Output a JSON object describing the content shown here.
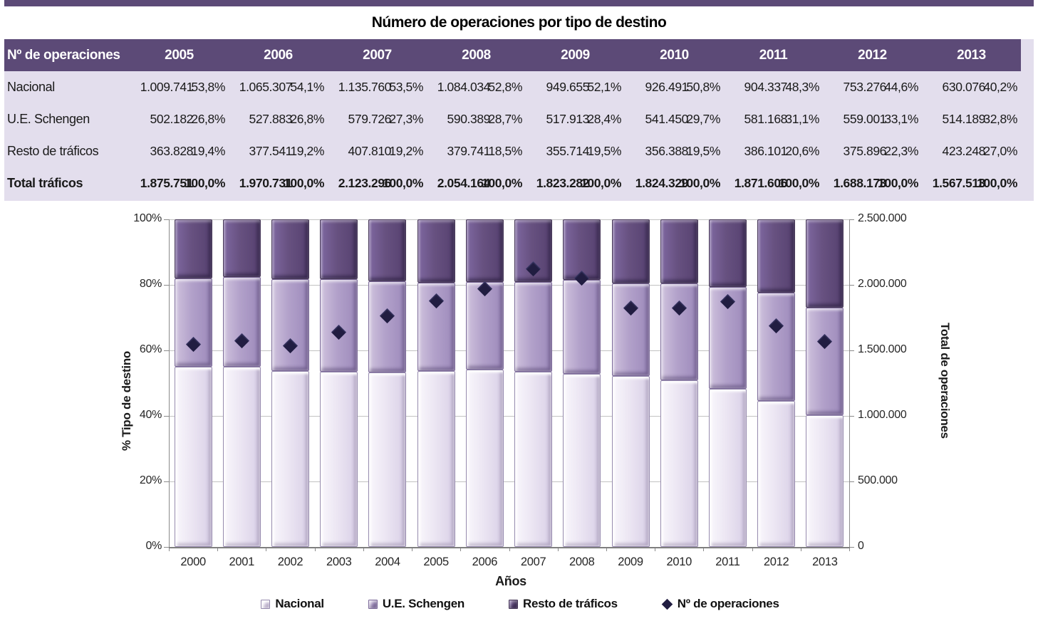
{
  "table": {
    "title": "Número de operaciones por tipo de destino",
    "corner_header": "Nº de operaciones",
    "years": [
      "2005",
      "2006",
      "2007",
      "2008",
      "2009",
      "2010",
      "2011",
      "2012",
      "2013"
    ],
    "rows": [
      {
        "label": "Nacional",
        "bold": false,
        "cells": [
          [
            "1.009.741",
            "53,8%"
          ],
          [
            "1.065.307",
            "54,1%"
          ],
          [
            "1.135.760",
            "53,5%"
          ],
          [
            "1.084.034",
            "52,8%"
          ],
          [
            "949.655",
            "52,1%"
          ],
          [
            "926.491",
            "50,8%"
          ],
          [
            "904.337",
            "48,3%"
          ],
          [
            "753.276",
            "44,6%"
          ],
          [
            "630.076",
            "40,2%"
          ]
        ]
      },
      {
        "label": "U.E. Schengen",
        "bold": false,
        "cells": [
          [
            "502.182",
            "26,8%"
          ],
          [
            "527.883",
            "26,8%"
          ],
          [
            "579.726",
            "27,3%"
          ],
          [
            "590.389",
            "28,7%"
          ],
          [
            "517.913",
            "28,4%"
          ],
          [
            "541.450",
            "29,7%"
          ],
          [
            "581.168",
            "31,1%"
          ],
          [
            "559.001",
            "33,1%"
          ],
          [
            "514.189",
            "32,8%"
          ]
        ]
      },
      {
        "label": "Resto de tráficos",
        "bold": false,
        "cells": [
          [
            "363.828",
            "19,4%"
          ],
          [
            "377.541",
            "19,2%"
          ],
          [
            "407.810",
            "19,2%"
          ],
          [
            "379.741",
            "18,5%"
          ],
          [
            "355.714",
            "19,5%"
          ],
          [
            "356.388",
            "19,5%"
          ],
          [
            "386.101",
            "20,6%"
          ],
          [
            "375.896",
            "22,3%"
          ],
          [
            "423.248",
            "27,0%"
          ]
        ]
      },
      {
        "label": "Total tráficos",
        "bold": true,
        "cells": [
          [
            "1.875.751",
            "100,0%"
          ],
          [
            "1.970.731",
            "100,0%"
          ],
          [
            "2.123.296",
            "100,0%"
          ],
          [
            "2.054.164",
            "100,0%"
          ],
          [
            "1.823.282",
            "100,0%"
          ],
          [
            "1.824.329",
            "100,0%"
          ],
          [
            "1.871.606",
            "100,0%"
          ],
          [
            "1.688.173",
            "100,0%"
          ],
          [
            "1.567.513",
            "100,0%"
          ]
        ]
      }
    ]
  },
  "chart_data": {
    "type": "combo-stacked-bar-100-with-scatter",
    "categories": [
      "2000",
      "2001",
      "2002",
      "2003",
      "2004",
      "2005",
      "2006",
      "2007",
      "2008",
      "2009",
      "2010",
      "2011",
      "2012",
      "2013"
    ],
    "series": [
      {
        "name": "Nacional",
        "values": [
          55.0,
          55.0,
          53.8,
          53.4,
          53.2,
          53.8,
          54.1,
          53.5,
          52.8,
          52.1,
          50.8,
          48.3,
          44.6,
          40.2
        ]
      },
      {
        "name": "U.E. Schengen",
        "values": [
          27.0,
          27.5,
          28.0,
          28.4,
          27.8,
          26.8,
          26.8,
          27.3,
          28.7,
          28.4,
          29.7,
          31.1,
          33.1,
          32.8
        ]
      },
      {
        "name": "Resto de tráficos",
        "values": [
          18.0,
          17.5,
          18.2,
          18.2,
          19.0,
          19.4,
          19.2,
          19.2,
          18.5,
          19.5,
          19.5,
          20.6,
          22.3,
          27.0
        ]
      }
    ],
    "scatter": {
      "name": "Nº de operaciones",
      "values": [
        1545000,
        1575000,
        1535000,
        1640000,
        1765000,
        1875751,
        1970731,
        2123296,
        2054164,
        1823282,
        1824329,
        1871606,
        1688173,
        1567513
      ]
    },
    "left_axis": {
      "label": "% Tipo de destino",
      "min": 0,
      "max": 100,
      "ticks": [
        "100%",
        "80%",
        "60%",
        "40%",
        "20%",
        "0%"
      ]
    },
    "right_axis": {
      "label": "Total de operaciones",
      "min": 0,
      "max": 2500000,
      "ticks": [
        "2.500.000",
        "2.000.000",
        "1.500.000",
        "1.000.000",
        "500.000",
        "0"
      ]
    },
    "xlabel": "Años",
    "grid": true,
    "legend_position": "bottom",
    "legend": [
      {
        "swatch": "seg-light",
        "label": "Nacional"
      },
      {
        "swatch": "seg-mid",
        "label": "U.E. Schengen"
      },
      {
        "swatch": "seg-dark",
        "label": "Resto de tráficos"
      },
      {
        "swatch": "diamond",
        "label": "Nº de operaciones"
      }
    ]
  },
  "colors": {
    "header_band": "#5c4a77",
    "table_body": "#e3deed",
    "segment_nacional": "#eae4f2",
    "segment_schengen": "#b1a0c7",
    "segment_resto": "#68527f",
    "scatter_diamond": "#211d41",
    "gridline": "#c2c2c2"
  }
}
